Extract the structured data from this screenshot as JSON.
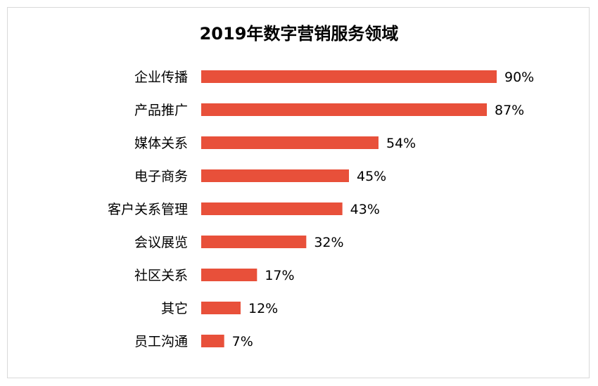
{
  "chart_data": {
    "type": "bar",
    "orientation": "horizontal",
    "title": "2019年数字营销服务领域",
    "categories": [
      "企业传播",
      "产品推广",
      "媒体关系",
      "电子商务",
      "客户关系管理",
      "会议展览",
      "社区关系",
      "其它",
      "员工沟通"
    ],
    "values": [
      90,
      87,
      54,
      45,
      43,
      32,
      17,
      12,
      7
    ],
    "value_labels": [
      "90%",
      "87%",
      "54%",
      "45%",
      "43%",
      "32%",
      "17%",
      "12%",
      "7%"
    ],
    "unit": "%",
    "xlim": [
      0,
      100
    ],
    "grid": false,
    "legend": "none",
    "bar_color": "#e8503a"
  }
}
